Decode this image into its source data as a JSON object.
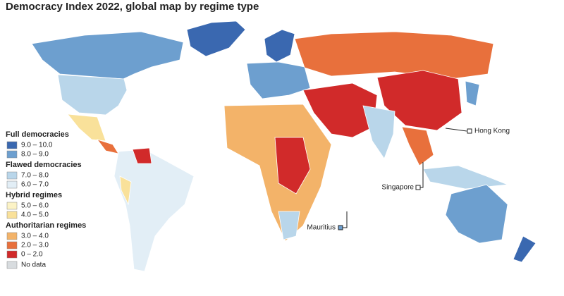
{
  "title": "Democracy Index 2022, global map by regime type",
  "legend": [
    {
      "heading": "Full democracies",
      "items": [
        {
          "label": "9.0 – 10.0",
          "color": "#3a68b0"
        },
        {
          "label": "8.0 – 9.0",
          "color": "#6d9fcf"
        }
      ]
    },
    {
      "heading": "Flawed democracies",
      "items": [
        {
          "label": "7.0 – 8.0",
          "color": "#b9d6ea"
        },
        {
          "label": "6.0 – 7.0",
          "color": "#e2eef6"
        }
      ]
    },
    {
      "heading": "Hybrid regimes",
      "items": [
        {
          "label": "5.0 – 6.0",
          "color": "#fcf3c6"
        },
        {
          "label": "4.0 – 5.0",
          "color": "#f9e19a"
        }
      ]
    },
    {
      "heading": "Authoritarian regimes",
      "items": [
        {
          "label": "3.0 – 4.0",
          "color": "#f3b369"
        },
        {
          "label": "2.0 – 3.0",
          "color": "#e8703c"
        },
        {
          "label": "0 – 2.0",
          "color": "#d12a2a"
        }
      ]
    }
  ],
  "no_data": {
    "label": "No data",
    "color": "#d8dcdf"
  },
  "callouts": [
    {
      "label": "Hong Kong"
    },
    {
      "label": "Singapore"
    },
    {
      "label": "Mauritius"
    }
  ]
}
